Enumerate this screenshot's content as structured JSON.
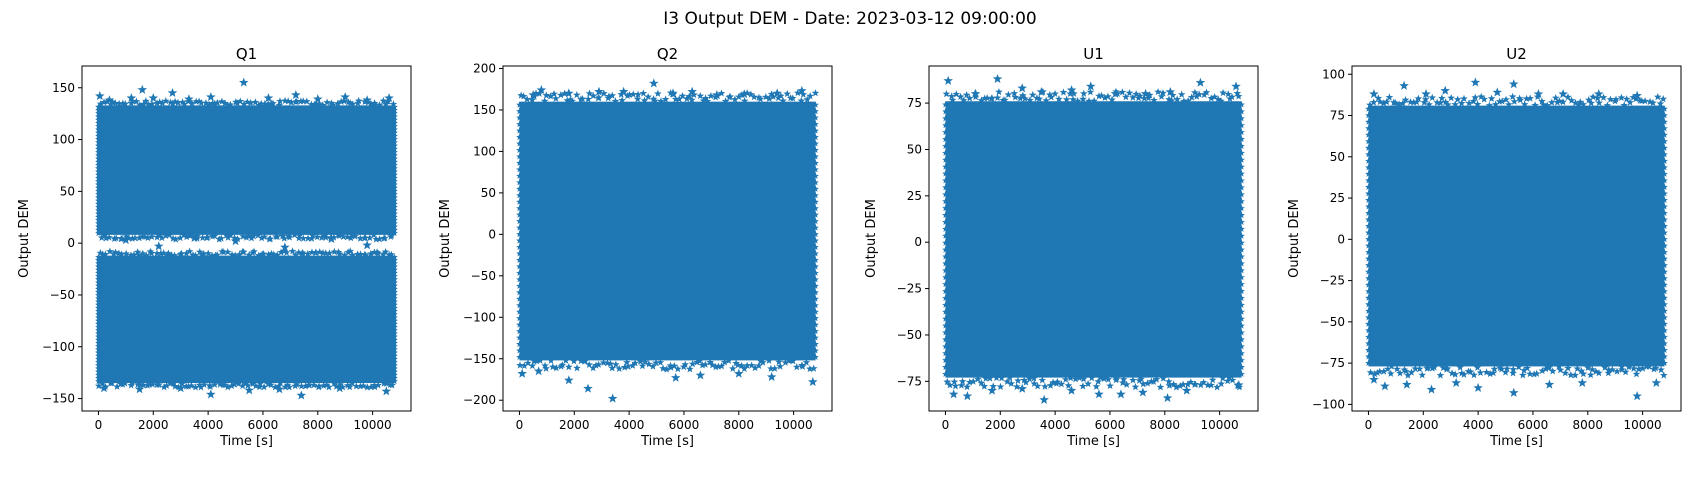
{
  "figure": {
    "suptitle": "I3 Output DEM - Date: 2023-03-12 09:00:00"
  },
  "chart_data": [
    {
      "type": "scatter",
      "title": "Q1",
      "xlabel": "Time [s]",
      "ylabel": "Output DEM",
      "marker": "star",
      "color": "#1f77b4",
      "xlim": [
        -600,
        11400
      ],
      "ylim": [
        -162,
        171
      ],
      "xticks": [
        0,
        2000,
        4000,
        6000,
        8000,
        10000
      ],
      "xtick_labels": [
        "0",
        "2000",
        "4000",
        "6000",
        "8000",
        "10000"
      ],
      "yticks": [
        -150,
        -100,
        -50,
        0,
        50,
        100,
        150
      ],
      "ytick_labels": [
        "−150",
        "−100",
        "−50",
        "0",
        "50",
        "100",
        "150"
      ],
      "x_range": [
        0,
        10800
      ],
      "bands": [
        {
          "min": 8,
          "max": 133
        },
        {
          "min": -135,
          "max": -12
        }
      ],
      "outliers": [
        [
          50,
          142
        ],
        [
          400,
          138
        ],
        [
          1200,
          140
        ],
        [
          1600,
          148
        ],
        [
          2000,
          140
        ],
        [
          2700,
          145
        ],
        [
          3300,
          139
        ],
        [
          4100,
          141
        ],
        [
          5300,
          155
        ],
        [
          6200,
          140
        ],
        [
          7200,
          143
        ],
        [
          8000,
          139
        ],
        [
          9000,
          141
        ],
        [
          9800,
          138
        ],
        [
          10600,
          140
        ],
        [
          4100,
          -146
        ],
        [
          5500,
          -142
        ],
        [
          7400,
          -147
        ],
        [
          200,
          -140
        ],
        [
          1500,
          -141
        ],
        [
          3000,
          -140
        ],
        [
          6600,
          -141
        ],
        [
          8800,
          -140
        ],
        [
          10500,
          -143
        ],
        [
          1000,
          3
        ],
        [
          2200,
          -3
        ],
        [
          3500,
          5
        ],
        [
          5000,
          2
        ],
        [
          6800,
          -4
        ],
        [
          8500,
          4
        ],
        [
          9800,
          -2
        ]
      ]
    },
    {
      "type": "scatter",
      "title": "Q2",
      "xlabel": "Time [s]",
      "ylabel": "Output DEM",
      "marker": "star",
      "color": "#1f77b4",
      "xlim": [
        -600,
        11400
      ],
      "ylim": [
        -213,
        203
      ],
      "xticks": [
        0,
        2000,
        4000,
        6000,
        8000,
        10000
      ],
      "xtick_labels": [
        "0",
        "2000",
        "4000",
        "6000",
        "8000",
        "10000"
      ],
      "yticks": [
        -200,
        -150,
        -100,
        -50,
        0,
        50,
        100,
        150,
        200
      ],
      "ytick_labels": [
        "−200",
        "−150",
        "−100",
        "−50",
        "0",
        "50",
        "100",
        "150",
        "200"
      ],
      "x_range": [
        0,
        10800
      ],
      "bands": [
        {
          "min": -152,
          "max": 160
        }
      ],
      "outliers": [
        [
          500,
          168
        ],
        [
          800,
          174
        ],
        [
          1800,
          170
        ],
        [
          2900,
          172
        ],
        [
          3800,
          172
        ],
        [
          4900,
          182
        ],
        [
          5600,
          170
        ],
        [
          6300,
          172
        ],
        [
          7200,
          168
        ],
        [
          8200,
          169
        ],
        [
          9400,
          170
        ],
        [
          10300,
          173
        ],
        [
          100,
          -168
        ],
        [
          700,
          -165
        ],
        [
          1800,
          -176
        ],
        [
          2500,
          -186
        ],
        [
          3400,
          -198
        ],
        [
          5700,
          -173
        ],
        [
          6600,
          -170
        ],
        [
          8000,
          -168
        ],
        [
          9200,
          -172
        ],
        [
          10700,
          -178
        ]
      ]
    },
    {
      "type": "scatter",
      "title": "U1",
      "xlabel": "Time [s]",
      "ylabel": "Output DEM",
      "marker": "star",
      "color": "#1f77b4",
      "xlim": [
        -600,
        11400
      ],
      "ylim": [
        -91,
        95
      ],
      "xticks": [
        0,
        2000,
        4000,
        6000,
        8000,
        10000
      ],
      "xtick_labels": [
        "0",
        "2000",
        "4000",
        "6000",
        "8000",
        "10000"
      ],
      "yticks": [
        -75,
        -50,
        -25,
        0,
        25,
        50,
        75
      ],
      "ytick_labels": [
        "−75",
        "−50",
        "−25",
        "0",
        "25",
        "50",
        "75"
      ],
      "x_range": [
        0,
        10800
      ],
      "bands": [
        {
          "min": -73,
          "max": 76
        }
      ],
      "outliers": [
        [
          100,
          87
        ],
        [
          1100,
          80
        ],
        [
          1900,
          88
        ],
        [
          2800,
          83
        ],
        [
          3500,
          81
        ],
        [
          4600,
          82
        ],
        [
          5300,
          84
        ],
        [
          6200,
          80
        ],
        [
          7300,
          80
        ],
        [
          8200,
          81
        ],
        [
          9300,
          86
        ],
        [
          10600,
          84
        ],
        [
          300,
          -82
        ],
        [
          800,
          -83
        ],
        [
          1700,
          -80
        ],
        [
          2800,
          -79
        ],
        [
          3600,
          -85
        ],
        [
          4600,
          -80
        ],
        [
          5600,
          -82
        ],
        [
          6400,
          -82
        ],
        [
          7200,
          -81
        ],
        [
          8100,
          -84
        ],
        [
          8800,
          -80
        ],
        [
          10700,
          -77
        ]
      ]
    },
    {
      "type": "scatter",
      "title": "U2",
      "xlabel": "Time [s]",
      "ylabel": "Output DEM",
      "marker": "star",
      "color": "#1f77b4",
      "xlim": [
        -600,
        11400
      ],
      "ylim": [
        -104,
        105
      ],
      "xticks": [
        0,
        2000,
        4000,
        6000,
        8000,
        10000
      ],
      "xtick_labels": [
        "0",
        "2000",
        "4000",
        "6000",
        "8000",
        "10000"
      ],
      "yticks": [
        -100,
        -75,
        -50,
        -25,
        0,
        25,
        50,
        75,
        100
      ],
      "ytick_labels": [
        "−100",
        "−75",
        "−50",
        "−25",
        "0",
        "25",
        "50",
        "75",
        "100"
      ],
      "x_range": [
        0,
        10800
      ],
      "bands": [
        {
          "min": -77,
          "max": 81
        }
      ],
      "outliers": [
        [
          200,
          88
        ],
        [
          1300,
          93
        ],
        [
          2100,
          88
        ],
        [
          2800,
          90
        ],
        [
          3900,
          95
        ],
        [
          4700,
          89
        ],
        [
          5300,
          94
        ],
        [
          6200,
          88
        ],
        [
          7100,
          88
        ],
        [
          8400,
          88
        ],
        [
          9800,
          87
        ],
        [
          200,
          -85
        ],
        [
          600,
          -89
        ],
        [
          1400,
          -88
        ],
        [
          2300,
          -91
        ],
        [
          3200,
          -87
        ],
        [
          4000,
          -90
        ],
        [
          5300,
          -93
        ],
        [
          6600,
          -88
        ],
        [
          7800,
          -87
        ],
        [
          9800,
          -95
        ],
        [
          10500,
          -87
        ]
      ]
    }
  ]
}
